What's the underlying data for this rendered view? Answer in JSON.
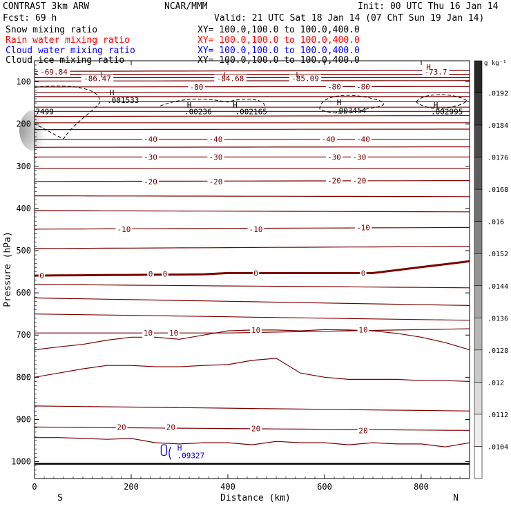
{
  "header": {
    "model": "CONTRAST  3km ARW",
    "center": "NCAR/MMM",
    "init": "Init: 00 UTC Thu 16 Jan 14",
    "fcst": "Fcst:   69 h",
    "valid": "Valid: 21 UTC Sat 18 Jan 14 (07 ChT Sun 19 Jan 14)",
    "fields": [
      {
        "name": "Snow mixing ratio",
        "xy": "XY= 100.0,100.0 to 100.0,400.0",
        "color": "#000000"
      },
      {
        "name": "Rain water mixing ratio",
        "xy": "XY= 100.0,100.0 to 100.0,400.0",
        "color": "#ff0000"
      },
      {
        "name": "Cloud water mixing ratio",
        "xy": "XY= 100.0,100.0 to 100.0,400.0",
        "color": "#0000ff"
      },
      {
        "name": "Cloud ice mixing ratio",
        "xy": "XY= 100.0,100.0 to 100.0,400.0",
        "color": "#000000"
      }
    ]
  },
  "colors": {
    "temperature": "#7a0000",
    "snow": "#000000",
    "cloud_water": "#0000cc"
  },
  "chart_data": {
    "type": "cross-section contour",
    "xlabel": "Distance (km)",
    "ylabel": "Pressure (hPa)",
    "xlim": [
      0,
      900
    ],
    "ylim": [
      1040,
      50
    ],
    "x_ticks": [
      0,
      200,
      400,
      600,
      800
    ],
    "y_ticks": [
      100,
      200,
      300,
      400,
      500,
      600,
      700,
      800,
      900,
      1000
    ],
    "left_end": "S",
    "right_end": "N",
    "colorbar": {
      "unit": "g kg⁻¹",
      "levels": [
        ".0192",
        ".0184",
        ".0176",
        ".0168",
        ".016",
        ".0152",
        ".0144",
        ".0136",
        ".0128",
        ".012",
        ".0112",
        ".0104"
      ]
    },
    "temperature_labels": [
      {
        "text": "-69.84",
        "x": 40,
        "p": 76
      },
      {
        "text": "-86.47",
        "x": 130,
        "p": 92
      },
      {
        "text": "-84.68",
        "x": 405,
        "p": 92
      },
      {
        "text": "-85.09",
        "x": 560,
        "p": 92
      },
      {
        "text": "-73.7",
        "x": 830,
        "p": 76
      },
      {
        "text": "-80",
        "x": 335,
        "p": 112
      },
      {
        "text": "-80",
        "x": 620,
        "p": 111
      },
      {
        "text": "-80",
        "x": 680,
        "p": 111
      },
      {
        "text": "-40",
        "x": 240,
        "p": 236
      },
      {
        "text": "-40",
        "x": 375,
        "p": 236
      },
      {
        "text": "-40",
        "x": 608,
        "p": 236
      },
      {
        "text": "-40",
        "x": 680,
        "p": 236
      },
      {
        "text": "-30",
        "x": 240,
        "p": 278
      },
      {
        "text": "-30",
        "x": 375,
        "p": 278
      },
      {
        "text": "-30",
        "x": 620,
        "p": 278
      },
      {
        "text": "-30",
        "x": 672,
        "p": 278
      },
      {
        "text": "-20",
        "x": 240,
        "p": 336
      },
      {
        "text": "-20",
        "x": 375,
        "p": 336
      },
      {
        "text": "-20",
        "x": 620,
        "p": 334
      },
      {
        "text": "-20",
        "x": 672,
        "p": 334
      },
      {
        "text": "-10",
        "x": 185,
        "p": 449
      },
      {
        "text": "-10",
        "x": 458,
        "p": 449
      },
      {
        "text": "-10",
        "x": 680,
        "p": 445
      },
      {
        "text": "0",
        "x": 15,
        "p": 559
      },
      {
        "text": "0",
        "x": 240,
        "p": 555
      },
      {
        "text": "0",
        "x": 270,
        "p": 555
      },
      {
        "text": "0",
        "x": 458,
        "p": 553
      },
      {
        "text": "0",
        "x": 680,
        "p": 553
      },
      {
        "text": "10",
        "x": 235,
        "p": 695
      },
      {
        "text": "10",
        "x": 288,
        "p": 695
      },
      {
        "text": "10",
        "x": 458,
        "p": 688
      },
      {
        "text": "10",
        "x": 680,
        "p": 687
      },
      {
        "text": "20",
        "x": 180,
        "p": 918
      },
      {
        "text": "20",
        "x": 282,
        "p": 918
      },
      {
        "text": "20",
        "x": 458,
        "p": 921
      },
      {
        "text": "20",
        "x": 680,
        "p": 926
      }
    ],
    "extrema": [
      {
        "symbol": "L",
        "x": 140,
        "p": 83,
        "color": "#7a0000"
      },
      {
        "symbol": "L",
        "x": 395,
        "p": 83,
        "color": "#7a0000"
      },
      {
        "symbol": "L",
        "x": 545,
        "p": 83,
        "color": "#7a0000"
      },
      {
        "symbol": "H",
        "x": 815,
        "p": 65,
        "color": "#7a0000"
      },
      {
        "symbol": "H",
        "x": 160,
        "p": 125,
        "color": "#000000"
      },
      {
        "symbol": "H",
        "x": 320,
        "p": 155,
        "color": "#000000"
      },
      {
        "symbol": "H",
        "x": 415,
        "p": 155,
        "color": "#000000"
      },
      {
        "symbol": "H",
        "x": 630,
        "p": 148,
        "color": "#000000"
      },
      {
        "symbol": "H",
        "x": 830,
        "p": 155,
        "color": "#000000"
      },
      {
        "symbol": "H",
        "x": 300,
        "p": 967,
        "color": "#0000cc"
      }
    ],
    "snow_maxima": [
      {
        "text": ".001533",
        "x": 150,
        "p": 143
      },
      {
        "text": "7499",
        "x": 2,
        "p": 170
      },
      {
        "text": ".00236",
        "x": 310,
        "p": 170
      },
      {
        "text": ".002165",
        "x": 415,
        "p": 170
      },
      {
        "text": ".003454",
        "x": 620,
        "p": 168
      },
      {
        "text": ".002995",
        "x": 820,
        "p": 170
      }
    ],
    "cloud_water_maxima": [
      {
        "text": ".09327",
        "x": 295,
        "p": 985
      }
    ]
  }
}
